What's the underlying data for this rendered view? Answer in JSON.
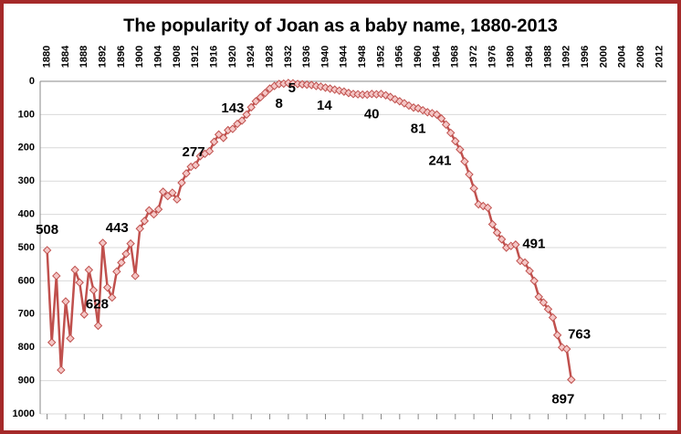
{
  "chart_data": {
    "type": "line",
    "title": "The popularity of Joan as a baby name, 1880-2013",
    "x": [
      1880,
      1881,
      1882,
      1883,
      1884,
      1885,
      1886,
      1887,
      1888,
      1889,
      1890,
      1891,
      1892,
      1893,
      1894,
      1895,
      1896,
      1897,
      1898,
      1899,
      1900,
      1901,
      1902,
      1903,
      1904,
      1905,
      1906,
      1907,
      1908,
      1909,
      1910,
      1911,
      1912,
      1913,
      1914,
      1915,
      1916,
      1917,
      1918,
      1919,
      1920,
      1921,
      1922,
      1923,
      1924,
      1925,
      1926,
      1927,
      1928,
      1929,
      1930,
      1931,
      1932,
      1933,
      1934,
      1935,
      1936,
      1937,
      1938,
      1939,
      1940,
      1941,
      1942,
      1943,
      1944,
      1945,
      1946,
      1947,
      1948,
      1949,
      1950,
      1951,
      1952,
      1953,
      1954,
      1955,
      1956,
      1957,
      1958,
      1959,
      1960,
      1961,
      1962,
      1963,
      1964,
      1965,
      1966,
      1967,
      1968,
      1969,
      1970,
      1971,
      1972,
      1973,
      1974,
      1975,
      1976,
      1977,
      1978,
      1979,
      1980,
      1981,
      1982,
      1983,
      1984,
      1985,
      1986,
      1987,
      1988,
      1989,
      1990,
      1991,
      1992,
      1993
    ],
    "series": [
      {
        "color": "#c0504d",
        "marker_fill": "#f4c7c6",
        "values": [
          508,
          785,
          585,
          868,
          662,
          773,
          567,
          605,
          701,
          567,
          628,
          735,
          486,
          620,
          650,
          572,
          545,
          519,
          488,
          585,
          443,
          420,
          388,
          400,
          385,
          332,
          345,
          335,
          355,
          305,
          277,
          257,
          252,
          225,
          218,
          210,
          182,
          160,
          170,
          147,
          143,
          128,
          118,
          100,
          78,
          60,
          48,
          35,
          22,
          14,
          8,
          7,
          5,
          6,
          8,
          9,
          10,
          11,
          14,
          16,
          19,
          22,
          25,
          28,
          31,
          35,
          38,
          39,
          40,
          40,
          38,
          39,
          38,
          42,
          47,
          54,
          60,
          66,
          73,
          79,
          81,
          87,
          93,
          96,
          100,
          112,
          130,
          155,
          180,
          205,
          241,
          280,
          322,
          370,
          375,
          380,
          430,
          455,
          475,
          500,
          495,
          491,
          540,
          545,
          570,
          600,
          648,
          665,
          685,
          710,
          763,
          800,
          805,
          897
        ]
      }
    ],
    "xlim": [
      1878.5,
      2013.5
    ],
    "xticks": [
      1880,
      1884,
      1888,
      1892,
      1896,
      1900,
      1904,
      1908,
      1912,
      1916,
      1920,
      1924,
      1928,
      1932,
      1936,
      1940,
      1944,
      1948,
      1952,
      1956,
      1960,
      1964,
      1968,
      1972,
      1976,
      1980,
      1984,
      1988,
      1992,
      1996,
      2000,
      2004,
      2008,
      2012
    ],
    "ylim": [
      0,
      1000
    ],
    "y_inverted": true,
    "yticks": [
      0,
      100,
      200,
      300,
      400,
      500,
      600,
      700,
      800,
      900,
      1000
    ],
    "grid": true
  }
}
